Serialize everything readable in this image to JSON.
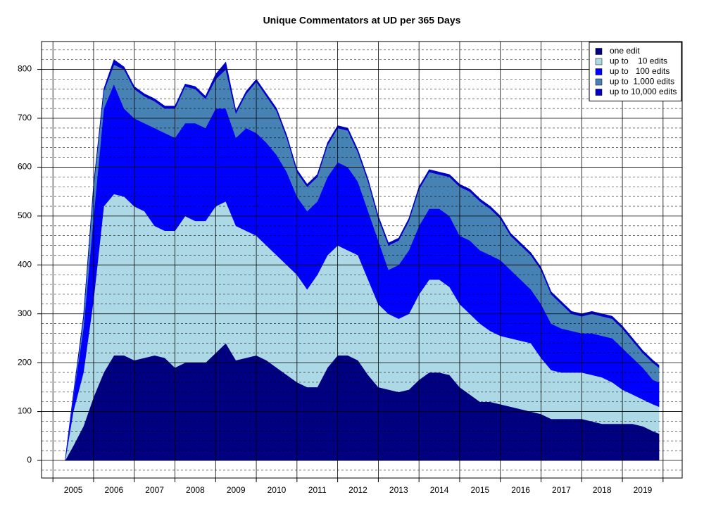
{
  "chart_data": {
    "type": "stacked_area",
    "title": "Unique Commentators at UD per 365 Days",
    "x": [
      2005.3,
      2005.5,
      2005.75,
      2006.0,
      2006.25,
      2006.5,
      2006.75,
      2007.0,
      2007.25,
      2007.5,
      2007.75,
      2008.0,
      2008.25,
      2008.5,
      2008.75,
      2009.0,
      2009.25,
      2009.5,
      2009.75,
      2010.0,
      2010.25,
      2010.5,
      2010.75,
      2011.0,
      2011.25,
      2011.5,
      2011.75,
      2012.0,
      2012.25,
      2012.5,
      2012.75,
      2013.0,
      2013.25,
      2013.5,
      2013.75,
      2014.0,
      2014.25,
      2014.5,
      2014.75,
      2015.0,
      2015.25,
      2015.5,
      2015.75,
      2016.0,
      2016.25,
      2016.5,
      2016.75,
      2017.0,
      2017.25,
      2017.5,
      2017.75,
      2018.0,
      2018.25,
      2018.5,
      2018.75,
      2019.0,
      2019.25,
      2019.5,
      2019.75,
      2019.9
    ],
    "series": [
      {
        "name": "one edit",
        "color": "#000080",
        "values": [
          0,
          30,
          70,
          130,
          180,
          215,
          215,
          205,
          210,
          215,
          210,
          190,
          200,
          200,
          200,
          220,
          240,
          205,
          210,
          215,
          205,
          190,
          175,
          160,
          150,
          150,
          190,
          215,
          215,
          205,
          175,
          150,
          145,
          140,
          145,
          165,
          180,
          180,
          175,
          150,
          135,
          120,
          120,
          115,
          110,
          105,
          100,
          95,
          85,
          85,
          85,
          85,
          80,
          75,
          75,
          75,
          75,
          70,
          60,
          55
        ]
      },
      {
        "name": "up to    10 edits",
        "color": "#add8e6",
        "values": [
          0,
          70,
          110,
          200,
          340,
          330,
          325,
          315,
          300,
          265,
          260,
          280,
          300,
          290,
          290,
          300,
          290,
          275,
          260,
          245,
          235,
          230,
          225,
          220,
          200,
          230,
          230,
          225,
          215,
          215,
          195,
          170,
          155,
          150,
          155,
          175,
          190,
          190,
          180,
          170,
          165,
          160,
          145,
          140,
          140,
          140,
          140,
          115,
          100,
          95,
          95,
          95,
          95,
          95,
          85,
          70,
          60,
          55,
          55,
          55
        ]
      },
      {
        "name": "up to   100 edits",
        "color": "#0000ff",
        "values": [
          0,
          30,
          90,
          170,
          200,
          225,
          180,
          180,
          180,
          200,
          200,
          190,
          190,
          200,
          190,
          200,
          190,
          180,
          210,
          210,
          210,
          205,
          190,
          160,
          160,
          150,
          160,
          170,
          170,
          150,
          140,
          130,
          90,
          110,
          130,
          140,
          145,
          145,
          145,
          140,
          150,
          150,
          155,
          155,
          140,
          125,
          110,
          110,
          95,
          90,
          85,
          80,
          85,
          85,
          90,
          85,
          75,
          65,
          50,
          50
        ]
      },
      {
        "name": "up to  1,000 edits",
        "color": "#4682b4",
        "values": [
          0,
          3,
          20,
          60,
          35,
          40,
          80,
          60,
          55,
          55,
          50,
          60,
          75,
          70,
          60,
          60,
          80,
          50,
          70,
          105,
          95,
          90,
          70,
          50,
          50,
          50,
          65,
          70,
          75,
          60,
          60,
          45,
          50,
          50,
          60,
          75,
          75,
          70,
          80,
          100,
          100,
          100,
          95,
          85,
          70,
          70,
          70,
          70,
          60,
          50,
          35,
          35,
          40,
          40,
          40,
          40,
          35,
          30,
          35,
          30
        ]
      },
      {
        "name": "up to 10,000 edits",
        "color": "#0000cd",
        "values": [
          0,
          2,
          5,
          5,
          5,
          10,
          5,
          5,
          5,
          5,
          5,
          5,
          5,
          5,
          5,
          10,
          15,
          5,
          5,
          5,
          5,
          5,
          5,
          5,
          5,
          5,
          5,
          5,
          5,
          5,
          5,
          5,
          5,
          5,
          5,
          5,
          5,
          5,
          5,
          5,
          5,
          5,
          5,
          5,
          5,
          5,
          5,
          5,
          5,
          5,
          5,
          5,
          5,
          5,
          5,
          5,
          5,
          5,
          5,
          5
        ]
      }
    ],
    "xlim": [
      2004.72,
      2020.47
    ],
    "xticks": [
      {
        "value": 2005.5,
        "label": "2005"
      },
      {
        "value": 2006.5,
        "label": "2006"
      },
      {
        "value": 2007.5,
        "label": "2007"
      },
      {
        "value": 2008.5,
        "label": "2008"
      },
      {
        "value": 2009.5,
        "label": "2009"
      },
      {
        "value": 2010.5,
        "label": "2010"
      },
      {
        "value": 2011.5,
        "label": "2011"
      },
      {
        "value": 2012.5,
        "label": "2012"
      },
      {
        "value": 2013.5,
        "label": "2013"
      },
      {
        "value": 2014.5,
        "label": "2014"
      },
      {
        "value": 2015.5,
        "label": "2015"
      },
      {
        "value": 2016.5,
        "label": "2016"
      },
      {
        "value": 2017.5,
        "label": "2017"
      },
      {
        "value": 2018.5,
        "label": "2018"
      },
      {
        "value": 2019.5,
        "label": "2019"
      }
    ],
    "ylim": [
      -36,
      857
    ],
    "yticks": [
      0,
      100,
      200,
      300,
      400,
      500,
      600,
      700,
      800
    ],
    "yminor": [
      -20,
      20,
      40,
      60,
      80,
      120,
      140,
      160,
      180,
      220,
      240,
      260,
      280,
      320,
      340,
      360,
      380,
      420,
      440,
      460,
      480,
      520,
      540,
      560,
      580,
      620,
      640,
      660,
      680,
      720,
      740,
      760,
      780,
      820,
      840
    ],
    "grid": true,
    "legend": "top-right"
  }
}
